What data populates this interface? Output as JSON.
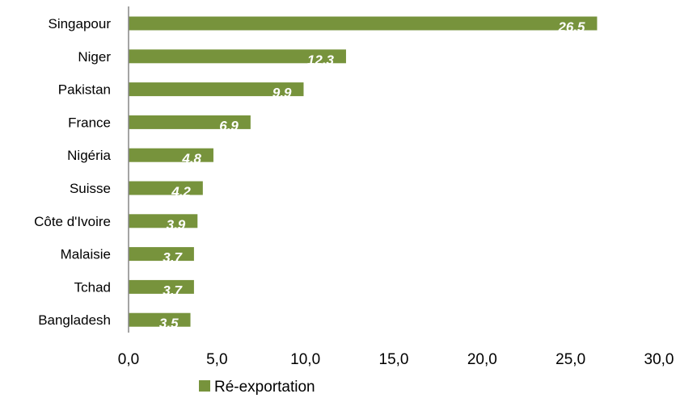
{
  "chart_data": {
    "type": "bar",
    "orientation": "horizontal",
    "categories": [
      "Singapour",
      "Niger",
      "Pakistan",
      "France",
      "Nigéria",
      "Suisse",
      "Côte d'Ivoire",
      "Malaisie",
      "Tchad",
      "Bangladesh"
    ],
    "series": [
      {
        "name": "Ré-exportation",
        "values": [
          26.5,
          12.3,
          9.9,
          6.9,
          4.8,
          4.2,
          3.9,
          3.7,
          3.7,
          3.5
        ],
        "data_labels": [
          "26.5",
          "12.3",
          "9.9",
          "6.9",
          "4.8",
          "4.2",
          "3.9",
          "3.7",
          "3.7",
          "3.5"
        ]
      }
    ],
    "xlim": [
      0,
      30
    ],
    "x_ticks": [
      0,
      5,
      10,
      15,
      20,
      25,
      30
    ],
    "x_tick_labels": [
      "0,0",
      "5,0",
      "10,0",
      "15,0",
      "20,0",
      "25,0",
      "30,0"
    ],
    "grid": false,
    "legend_position": "bottom",
    "colors": {
      "bar": "#77933c",
      "axis": "#868686",
      "data_label": "#ffffff"
    }
  }
}
